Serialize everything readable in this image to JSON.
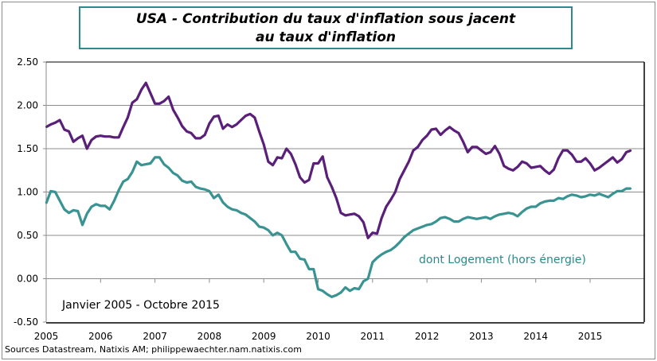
{
  "chart_data": {
    "type": "line",
    "title_line1": "USA - Contribution du taux d'inflation sous jacent",
    "title_line2": "au taux d'inflation",
    "period_note": "Janvier 2005 - Octobre 2015",
    "source": "Sources Datastream, Natixis AM; philippewaechter.nam.natixis.com",
    "ylim": [
      -0.5,
      2.5
    ],
    "y_ticks": [
      "2.50",
      "2.00",
      "1.50",
      "1.00",
      "0.50",
      "0.00",
      "-0.50"
    ],
    "x_ticks": [
      "2005",
      "2006",
      "2007",
      "2008",
      "2009",
      "2010",
      "2011",
      "2012",
      "2013",
      "2014",
      "2015"
    ],
    "x_start": "2005-01",
    "x_end": "2015-10",
    "frequency": "monthly",
    "grid": true,
    "series": [
      {
        "color": "#5a1f78",
        "values": [
          1.75,
          1.78,
          1.8,
          1.83,
          1.72,
          1.7,
          1.58,
          1.62,
          1.65,
          1.5,
          1.6,
          1.64,
          1.65,
          1.64,
          1.64,
          1.63,
          1.63,
          1.75,
          1.86,
          2.03,
          2.07,
          2.18,
          2.26,
          2.14,
          2.02,
          2.02,
          2.05,
          2.1,
          1.95,
          1.86,
          1.76,
          1.7,
          1.68,
          1.62,
          1.62,
          1.66,
          1.79,
          1.87,
          1.88,
          1.73,
          1.78,
          1.75,
          1.78,
          1.83,
          1.88,
          1.9,
          1.86,
          1.7,
          1.55,
          1.35,
          1.31,
          1.4,
          1.39,
          1.5,
          1.44,
          1.32,
          1.17,
          1.11,
          1.14,
          1.33,
          1.33,
          1.41,
          1.17,
          1.06,
          0.93,
          0.76,
          0.73,
          0.74,
          0.75,
          0.72,
          0.65,
          0.47,
          0.53,
          0.52,
          0.7,
          0.83,
          0.91,
          1.0,
          1.15,
          1.25,
          1.35,
          1.48,
          1.52,
          1.6,
          1.65,
          1.72,
          1.73,
          1.66,
          1.71,
          1.75,
          1.71,
          1.68,
          1.58,
          1.46,
          1.52,
          1.52,
          1.48,
          1.44,
          1.46,
          1.53,
          1.44,
          1.3,
          1.27,
          1.25,
          1.29,
          1.35,
          1.33,
          1.28,
          1.29,
          1.3,
          1.25,
          1.21,
          1.26,
          1.39,
          1.48,
          1.48,
          1.43,
          1.35,
          1.35,
          1.39,
          1.33,
          1.25,
          1.28,
          1.32,
          1.36,
          1.4,
          1.34,
          1.38,
          1.46,
          1.48
        ]
      },
      {
        "name": "dont Logement (hors énergie)",
        "color": "#3a9393",
        "values": [
          0.87,
          1.01,
          1.0,
          0.9,
          0.8,
          0.76,
          0.79,
          0.78,
          0.62,
          0.75,
          0.83,
          0.86,
          0.84,
          0.84,
          0.8,
          0.9,
          1.02,
          1.12,
          1.15,
          1.23,
          1.35,
          1.31,
          1.32,
          1.33,
          1.4,
          1.4,
          1.32,
          1.28,
          1.22,
          1.19,
          1.13,
          1.11,
          1.12,
          1.06,
          1.04,
          1.03,
          1.01,
          0.93,
          0.97,
          0.88,
          0.83,
          0.8,
          0.79,
          0.76,
          0.74,
          0.7,
          0.66,
          0.6,
          0.59,
          0.56,
          0.5,
          0.53,
          0.5,
          0.4,
          0.31,
          0.31,
          0.23,
          0.22,
          0.11,
          0.11,
          -0.12,
          -0.14,
          -0.18,
          -0.21,
          -0.19,
          -0.16,
          -0.1,
          -0.14,
          -0.11,
          -0.12,
          -0.03,
          0.0,
          0.19,
          0.24,
          0.28,
          0.31,
          0.33,
          0.37,
          0.42,
          0.48,
          0.52,
          0.56,
          0.58,
          0.6,
          0.62,
          0.63,
          0.66,
          0.7,
          0.71,
          0.69,
          0.66,
          0.66,
          0.69,
          0.71,
          0.7,
          0.69,
          0.7,
          0.71,
          0.69,
          0.72,
          0.74,
          0.75,
          0.76,
          0.75,
          0.72,
          0.77,
          0.81,
          0.83,
          0.83,
          0.87,
          0.89,
          0.9,
          0.9,
          0.93,
          0.92,
          0.95,
          0.97,
          0.96,
          0.94,
          0.95,
          0.97,
          0.96,
          0.98,
          0.96,
          0.94,
          0.98,
          1.01,
          1.01,
          1.04,
          1.04
        ]
      }
    ]
  }
}
